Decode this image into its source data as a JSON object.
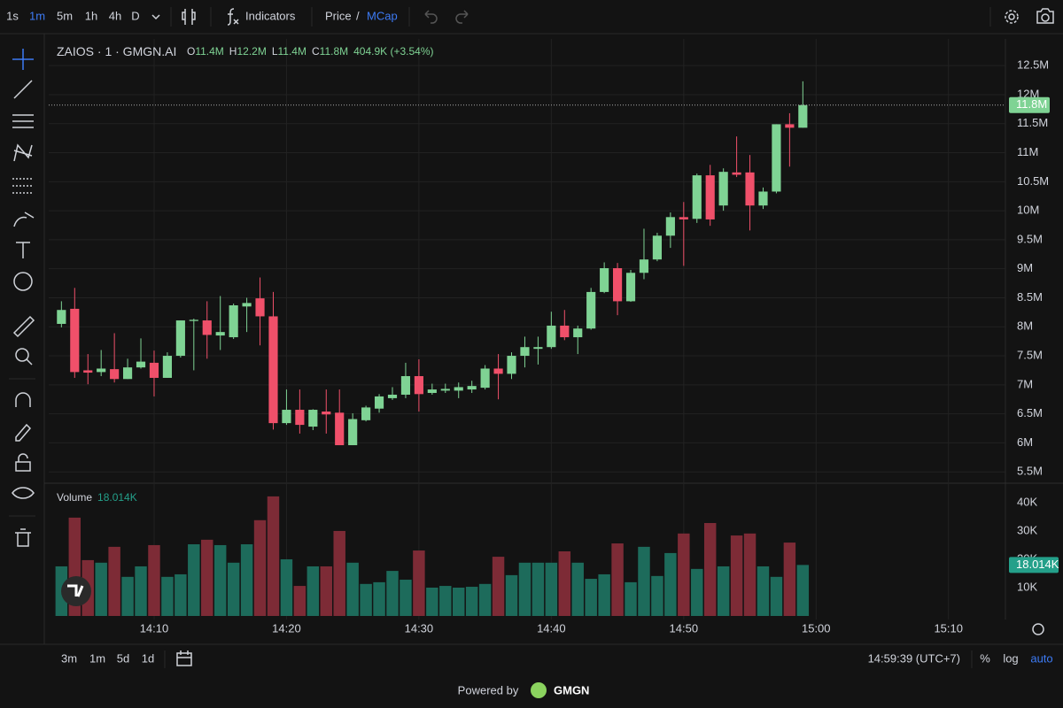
{
  "toolbar": {
    "intervals": [
      "1s",
      "1m",
      "5m",
      "1h",
      "4h",
      "D"
    ],
    "indicators": "Indicators",
    "price": "Price",
    "separator": "/",
    "mcap": "MCap"
  },
  "chart_data": {
    "type": "candlestick",
    "title": "ZAIOS · 1 · GMGN.AI",
    "legend": {
      "items": [
        {
          "key": "O",
          "value": "11.4M"
        },
        {
          "key": "H",
          "value": "12.2M"
        },
        {
          "key": "L",
          "value": "11.4M"
        },
        {
          "key": "C",
          "value": "11.8M"
        }
      ],
      "change": "404.9K (+3.54%)"
    },
    "x": [
      3,
      4,
      5,
      6,
      7,
      8,
      9,
      10,
      11,
      12,
      13,
      14,
      15,
      16,
      17,
      18,
      19,
      20,
      21,
      22,
      23,
      24,
      25,
      26,
      27,
      28,
      29,
      30,
      31,
      32,
      33,
      34,
      35,
      36,
      37,
      38,
      39,
      40,
      41,
      42,
      43,
      44,
      45,
      46,
      47,
      48,
      49,
      50,
      51,
      52,
      53,
      54,
      55,
      56,
      57,
      58,
      59
    ],
    "open": [
      8.05,
      8.31,
      7.25,
      7.22,
      7.27,
      7.1,
      7.3,
      7.38,
      7.12,
      7.5,
      8.1,
      8.11,
      7.85,
      7.82,
      8.35,
      8.49,
      8.18,
      6.34,
      6.57,
      6.28,
      6.54,
      6.52,
      5.96,
      6.39,
      6.59,
      6.77,
      6.83,
      7.15,
      6.86,
      6.9,
      6.9,
      6.92,
      6.95,
      7.28,
      7.19,
      7.5,
      7.62,
      7.65,
      8.02,
      7.82,
      7.97,
      8.6,
      9.01,
      8.44,
      8.93,
      9.16,
      9.57,
      9.89,
      9.86,
      10.61,
      10.09,
      10.66,
      10.66,
      10.09,
      10.33,
      11.49,
      11.43
    ],
    "high": [
      8.44,
      8.67,
      7.53,
      7.6,
      7.89,
      7.45,
      7.8,
      7.59,
      7.56,
      8.11,
      8.14,
      8.44,
      8.53,
      8.4,
      8.5,
      8.85,
      8.6,
      6.92,
      6.92,
      6.58,
      6.92,
      6.92,
      6.51,
      6.64,
      6.84,
      6.96,
      7.38,
      7.44,
      7.02,
      7.02,
      7.04,
      7.07,
      7.34,
      7.53,
      7.56,
      7.83,
      7.83,
      8.26,
      8.29,
      8.02,
      8.67,
      9.11,
      9.1,
      8.98,
      9.69,
      9.62,
      9.97,
      10.15,
      10.64,
      10.79,
      10.73,
      11.28,
      10.96,
      10.4,
      11.49,
      11.68,
      12.23
    ],
    "low": [
      7.99,
      7.12,
      7.01,
      7.15,
      7.04,
      7.1,
      7.28,
      6.8,
      7.12,
      7.47,
      7.25,
      7.45,
      7.6,
      7.79,
      7.91,
      7.68,
      6.23,
      6.31,
      6.16,
      6.22,
      6.16,
      5.96,
      5.96,
      6.37,
      6.52,
      6.74,
      6.77,
      6.54,
      6.83,
      6.86,
      6.77,
      6.86,
      6.92,
      6.75,
      7.1,
      7.3,
      7.35,
      7.62,
      7.77,
      7.53,
      7.95,
      8.58,
      8.2,
      8.43,
      8.82,
      9.13,
      9.36,
      9.05,
      9.79,
      9.74,
      10.0,
      10.58,
      9.66,
      10.03,
      10.3,
      10.76,
      11.43
    ],
    "close": [
      8.29,
      7.22,
      7.21,
      7.28,
      7.1,
      7.3,
      7.4,
      7.12,
      7.5,
      8.11,
      8.12,
      7.86,
      7.91,
      8.37,
      8.41,
      8.18,
      6.34,
      6.57,
      6.31,
      6.57,
      6.49,
      5.96,
      6.41,
      6.61,
      6.8,
      6.83,
      7.15,
      6.84,
      6.92,
      6.93,
      6.96,
      6.98,
      7.28,
      7.19,
      7.5,
      7.65,
      7.65,
      8.02,
      7.82,
      7.97,
      8.6,
      9.01,
      8.44,
      8.93,
      9.16,
      9.57,
      9.89,
      9.85,
      10.61,
      9.85,
      10.67,
      10.62,
      10.09,
      10.33,
      11.49,
      11.43,
      11.82
    ],
    "last_price_label": "11.8M",
    "up_color": "#7fd394",
    "down_color": "#f0506a",
    "xlim": [
      2.04,
      74.3
    ],
    "xticks": [
      {
        "value": 10,
        "label": "14:10"
      },
      {
        "value": 20,
        "label": "14:20"
      },
      {
        "value": 30,
        "label": "14:30"
      },
      {
        "value": 40,
        "label": "14:40"
      },
      {
        "value": 50,
        "label": "14:50"
      },
      {
        "value": 60,
        "label": "15:00"
      },
      {
        "value": 70,
        "label": "15:10"
      }
    ],
    "ylim": [
      5.32,
      12.96
    ],
    "yticks": [
      {
        "value": 5.5,
        "label": "5.5M"
      },
      {
        "value": 6,
        "label": "6M"
      },
      {
        "value": 6.5,
        "label": "6.5M"
      },
      {
        "value": 7,
        "label": "7M"
      },
      {
        "value": 7.5,
        "label": "7.5M"
      },
      {
        "value": 8,
        "label": "8M"
      },
      {
        "value": 8.5,
        "label": "8.5M"
      },
      {
        "value": 9,
        "label": "9M"
      },
      {
        "value": 9.5,
        "label": "9.5M"
      },
      {
        "value": 10,
        "label": "10M"
      },
      {
        "value": 10.5,
        "label": "10.5M"
      },
      {
        "value": 11,
        "label": "11M"
      },
      {
        "value": 11.5,
        "label": "11.5M"
      },
      {
        "value": 12,
        "label": "12M"
      },
      {
        "value": 12.5,
        "label": "12.5M"
      }
    ],
    "grid": true,
    "volume": {
      "name": "Volume",
      "last_label": "18.014K",
      "up_color": "#1d6b5b",
      "down_color": "#7d2b36",
      "label_color": "#24a08a",
      "values": [
        17.5,
        34.7,
        19.7,
        18.8,
        24.4,
        13.8,
        17.5,
        25,
        13.8,
        14.7,
        25.3,
        26.9,
        25,
        18.8,
        25.3,
        33.8,
        42.2,
        20,
        10.6,
        17.5,
        17.5,
        30,
        18.8,
        11.3,
        11.9,
        15.9,
        12.8,
        23.1,
        10,
        10.6,
        10,
        10.3,
        11.3,
        20.9,
        14.4,
        18.8,
        18.8,
        18.8,
        22.8,
        18.8,
        13.1,
        14.7,
        25.6,
        11.9,
        24.4,
        14.1,
        22.2,
        29.1,
        16.6,
        32.8,
        17.5,
        28.4,
        29.1,
        17.5,
        13.8,
        25.9,
        18
      ],
      "ylim": [
        0,
        45.6
      ],
      "yticks": [
        {
          "value": 10,
          "label": "10K"
        },
        {
          "value": 20,
          "label": "20K"
        },
        {
          "value": 30,
          "label": "30K"
        },
        {
          "value": 40,
          "label": "40K"
        }
      ]
    }
  },
  "bottom_bar": {
    "ranges": [
      "3m",
      "1m",
      "5d",
      "1d"
    ],
    "time": "14:59:39 (UTC+7)",
    "percent": "%",
    "log": "log",
    "auto": "auto"
  },
  "footer": {
    "powered": "Powered by",
    "brand": "GMGN"
  }
}
